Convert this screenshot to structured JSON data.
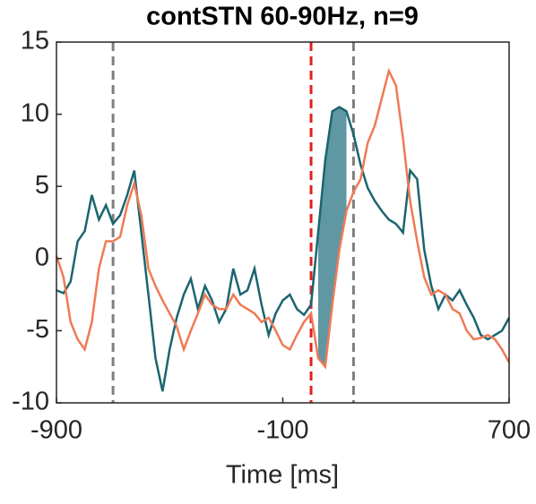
{
  "chart_data": {
    "type": "line",
    "title": "contSTN 60-90Hz, n=9",
    "x_label": "Time [ms]",
    "x": [
      -900,
      -875,
      -850,
      -825,
      -800,
      -775,
      -750,
      -725,
      -700,
      -675,
      -650,
      -625,
      -600,
      -575,
      -550,
      -525,
      -500,
      -475,
      -450,
      -425,
      -400,
      -375,
      -350,
      -325,
      -300,
      -275,
      -250,
      -225,
      -200,
      -175,
      -150,
      -125,
      -100,
      -75,
      -50,
      -25,
      0,
      25,
      50,
      75,
      100,
      125,
      150,
      175,
      200,
      225,
      250,
      275,
      300,
      325,
      350,
      375,
      400,
      425,
      450,
      475,
      500,
      525,
      550,
      575,
      600,
      625,
      650,
      675,
      700
    ],
    "series": [
      {
        "name": "teal",
        "color": "#1b6570",
        "values": [
          -2.2,
          -2.4,
          -1.6,
          1.2,
          1.9,
          4.4,
          2.7,
          3.7,
          2.4,
          3.0,
          4.4,
          6.1,
          1.8,
          -2.5,
          -6.9,
          -9.2,
          -6.3,
          -4.1,
          -2.5,
          -1.4,
          -3.5,
          -1.9,
          -2.9,
          -4.4,
          -3.5,
          -0.7,
          -2.5,
          -2.2,
          -0.7,
          -3.2,
          -5.3,
          -3.8,
          -2.9,
          -2.5,
          -3.5,
          -3.9,
          -3.2,
          1.8,
          6.8,
          10.2,
          10.5,
          10.2,
          8.6,
          6.5,
          4.9,
          4.0,
          3.3,
          2.7,
          2.4,
          1.8,
          6.1,
          5.5,
          0.6,
          -1.9,
          -3.5,
          -2.5,
          -2.9,
          -2.2,
          -3.2,
          -4.1,
          -5.3,
          -5.6,
          -5.3,
          -5.0,
          -4.1
        ]
      },
      {
        "name": "orange",
        "color": "#ef7a55",
        "values": [
          0.2,
          -1.3,
          -4.4,
          -5.6,
          -6.3,
          -4.4,
          -0.7,
          1.2,
          1.2,
          1.5,
          3.7,
          5.2,
          3.0,
          -0.7,
          -1.9,
          -2.9,
          -3.8,
          -4.7,
          -6.3,
          -5.0,
          -3.8,
          -2.5,
          -3.2,
          -3.5,
          -3.5,
          -2.5,
          -3.2,
          -3.5,
          -3.8,
          -4.4,
          -4.1,
          -5.0,
          -6.0,
          -6.3,
          -5.3,
          -4.4,
          -3.8,
          -6.9,
          -7.5,
          -3.2,
          0.6,
          3.3,
          4.6,
          5.5,
          8.0,
          9.2,
          11.1,
          13.0,
          12.0,
          8.3,
          4.0,
          1.2,
          -1.3,
          -2.5,
          -2.2,
          -2.5,
          -3.5,
          -3.8,
          -5.0,
          -5.6,
          -5.5,
          -5.3,
          -5.6,
          -6.3,
          -7.2
        ]
      }
    ],
    "xlim": [
      -900,
      700
    ],
    "xticks": [
      -900,
      -100,
      700
    ],
    "ylim": [
      -10,
      15
    ],
    "yticks": [
      -10,
      -5,
      0,
      5,
      10,
      15
    ],
    "vlines": [
      {
        "x": -700,
        "color": "#7f7f7f"
      },
      {
        "x": 0,
        "color": "#e0201c"
      },
      {
        "x": 150,
        "color": "#7f7f7f"
      }
    ],
    "shade": {
      "xlim": [
        25,
        125
      ],
      "color": "#5f97a2"
    }
  }
}
